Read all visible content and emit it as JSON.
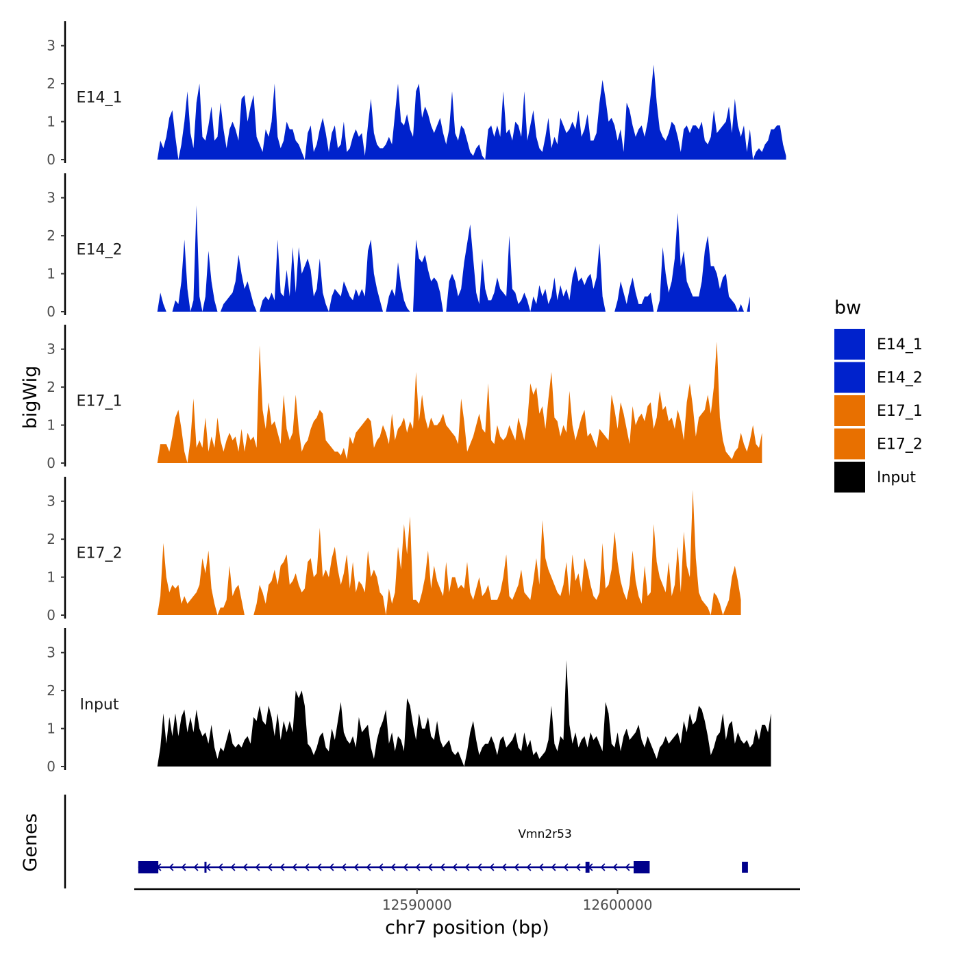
{
  "chart_data": {
    "type": "area",
    "ylabel": "bigWig",
    "xlabel": "chr7 position (bp)",
    "genes_label": "Genes",
    "xlim": [
      12575900,
      12609100
    ],
    "ylim": [
      0,
      3.5
    ],
    "y_ticks": [
      "0",
      "1",
      "2",
      "3"
    ],
    "x_ticks": [
      {
        "value": 12590000,
        "label": "12590000"
      },
      {
        "value": 12600000,
        "label": "12600000"
      }
    ],
    "data_start": 12577200,
    "data_step": 150,
    "legend": {
      "title": "bw",
      "entries": [
        {
          "label": "E14_1",
          "color": "#0022cc"
        },
        {
          "label": "E14_2",
          "color": "#0022cc"
        },
        {
          "label": "E17_1",
          "color": "#e87000"
        },
        {
          "label": "E17_2",
          "color": "#e87000"
        },
        {
          "label": "Input",
          "color": "#000000"
        }
      ]
    },
    "series": [
      {
        "name": "E14_1",
        "color": "#0022cc",
        "values": [
          0.5,
          0.3,
          0.6,
          1.1,
          1.3,
          0.6,
          0,
          0.4,
          1.0,
          1.8,
          0.7,
          0.3,
          1.5,
          2.0,
          0.6,
          0.5,
          0.9,
          1.4,
          0.5,
          0.6,
          1.5,
          0.8,
          0.3,
          0.8,
          1.0,
          0.8,
          0.5,
          1.6,
          1.7,
          1.0,
          1.4,
          1.7,
          0.6,
          0.4,
          0.2,
          0.8,
          0.6,
          1.0,
          2.0,
          0.6,
          0.3,
          0.5,
          1.0,
          0.8,
          0.8,
          0.5,
          0.4,
          0.2,
          0,
          0.7,
          0.9,
          0.2,
          0.4,
          0.8,
          1.1,
          0.7,
          0.2,
          0.7,
          0.9,
          0.3,
          0.4,
          1.0,
          0.2,
          0.3,
          0.6,
          0.8,
          0.6,
          0.7,
          0.1,
          0.9,
          1.6,
          0.7,
          0.4,
          0.3,
          0.3,
          0.4,
          0.6,
          0.4,
          1.2,
          2.0,
          1.0,
          0.9,
          1.2,
          0.8,
          0.6,
          1.8,
          2.0,
          1.1,
          1.4,
          1.2,
          0.9,
          0.7,
          0.9,
          1.1,
          0.7,
          0.4,
          0.8,
          1.8,
          0.7,
          0.5,
          0.9,
          0.8,
          0.5,
          0.2,
          0.1,
          0.3,
          0.4,
          0.1,
          0,
          0.8,
          0.9,
          0.6,
          0.9,
          0.6,
          1.8,
          0.7,
          0.8,
          0.5,
          1.0,
          0.9,
          0.6,
          1.8,
          0.5,
          0.9,
          1.3,
          0.6,
          0.3,
          0.2,
          0.6,
          1.1,
          0.3,
          0.6,
          0.4,
          1.1,
          0.9,
          0.7,
          0.8,
          1.0,
          0.8,
          1.3,
          0.6,
          0.8,
          1.2,
          0.5,
          0.5,
          0.7,
          1.5,
          2.1,
          1.6,
          1.0,
          1.1,
          0.9,
          0.5,
          0.8,
          0.2,
          1.5,
          1.3,
          0.9,
          0.6,
          0.8,
          0.9,
          0.6,
          1.0,
          1.7,
          2.5,
          1.5,
          0.8,
          0.6,
          0.5,
          0.7,
          1.0,
          0.9,
          0.6,
          0.2,
          0.8,
          0.9,
          0.7,
          0.9,
          0.9,
          0.8,
          1.0,
          0.5,
          0.4,
          0.6,
          1.3,
          0.7,
          0.8,
          0.9,
          1.0,
          1.4,
          0.7,
          1.6,
          0.9,
          0.6,
          0.9,
          0.2,
          0.8,
          0,
          0.2,
          0.3,
          0.2,
          0.4,
          0.5,
          0.8,
          0.8,
          0.9,
          0.9,
          0.4,
          0.1
        ]
      },
      {
        "name": "E14_2",
        "color": "#0022cc",
        "values": [
          0.5,
          0.2,
          0,
          0,
          0,
          0.3,
          0.2,
          0.8,
          1.9,
          0.6,
          0,
          0.3,
          2.8,
          0.4,
          0,
          0.4,
          1.6,
          0.8,
          0.3,
          0,
          0,
          0.2,
          0.3,
          0.4,
          0.5,
          0.8,
          1.5,
          1.0,
          0.6,
          0.8,
          0.5,
          0.2,
          0,
          0,
          0.3,
          0.4,
          0.3,
          0.5,
          0.3,
          1.9,
          0.5,
          0.4,
          1.1,
          0.4,
          1.7,
          0.5,
          1.7,
          1.0,
          1.2,
          1.4,
          1.1,
          0.4,
          0.6,
          1.4,
          0.5,
          0.2,
          0,
          0.4,
          0.6,
          0.5,
          0.4,
          0.8,
          0.6,
          0.4,
          0.3,
          0.6,
          0.4,
          0.6,
          0.4,
          1.6,
          1.9,
          1.0,
          0.6,
          0.3,
          0,
          0,
          0.4,
          0.6,
          0.4,
          1.3,
          0.7,
          0.3,
          0.1,
          0,
          0,
          1.9,
          1.4,
          1.3,
          1.5,
          1.1,
          0.8,
          0.9,
          0.8,
          0.5,
          0,
          0,
          0.8,
          1.0,
          0.8,
          0.4,
          0.6,
          1.3,
          1.8,
          2.3,
          1.4,
          0.5,
          0.2,
          1.4,
          0.6,
          0.3,
          0.3,
          0.5,
          0.9,
          0.6,
          0.5,
          0.4,
          2.0,
          0.6,
          0.5,
          0.2,
          0.3,
          0.5,
          0.3,
          0,
          0.4,
          0.2,
          0.7,
          0.4,
          0.6,
          0.2,
          0.4,
          0.9,
          0.3,
          0.7,
          0.4,
          0.6,
          0.3,
          0.9,
          1.2,
          0.8,
          0.9,
          0.7,
          0.9,
          1.0,
          0.6,
          0.9,
          1.8,
          0.4,
          0,
          0,
          0,
          0,
          0.3,
          0.8,
          0.5,
          0.2,
          0.6,
          0.9,
          0.5,
          0.2,
          0.2,
          0.4,
          0.4,
          0.5,
          0,
          0,
          0.3,
          1.7,
          1.0,
          0.5,
          0.8,
          1.4,
          2.6,
          1.2,
          1.6,
          0.8,
          0.6,
          0.4,
          0.4,
          0.4,
          0.8,
          1.6,
          2.0,
          1.2,
          1.2,
          1.0,
          0.6,
          0.9,
          1.0,
          0.4,
          0.3,
          0.2,
          0,
          0.2,
          0,
          0,
          0.4
        ]
      },
      {
        "name": "E17_1",
        "color": "#e87000",
        "values": [
          0.5,
          0.5,
          0.5,
          0.3,
          0.7,
          1.2,
          1.4,
          0.9,
          0.3,
          0,
          0.6,
          1.7,
          0.4,
          0.6,
          0.4,
          1.2,
          0.3,
          0.7,
          0.4,
          1.2,
          0.6,
          0.3,
          0.6,
          0.8,
          0.6,
          0.7,
          0.3,
          0.9,
          0.3,
          0.8,
          0.6,
          0.7,
          0.4,
          3.1,
          1.4,
          0.9,
          1.6,
          1.0,
          1.1,
          0.8,
          0.5,
          1.8,
          0.9,
          0.6,
          0.8,
          1.8,
          0.9,
          0.3,
          0.5,
          0.6,
          0.9,
          1.1,
          1.2,
          1.4,
          1.3,
          0.6,
          0.5,
          0.4,
          0.3,
          0.3,
          0.2,
          0.4,
          0.1,
          0.7,
          0.5,
          0.8,
          0.9,
          1.0,
          1.1,
          1.2,
          1.1,
          0.4,
          0.6,
          0.7,
          1.0,
          0.8,
          0.5,
          1.3,
          0.6,
          0.9,
          1.0,
          1.2,
          0.8,
          1.1,
          0.9,
          2.4,
          1.1,
          1.8,
          1.2,
          0.9,
          1.2,
          1.0,
          1.0,
          1.1,
          1.3,
          1.0,
          0.9,
          0.8,
          0.7,
          0.5,
          1.7,
          1.1,
          0.3,
          0.5,
          0.7,
          1.0,
          1.3,
          0.9,
          0.8,
          2.1,
          0.6,
          0.5,
          1.0,
          0.7,
          0.6,
          0.7,
          1.0,
          0.8,
          0.6,
          1.2,
          0.9,
          0.6,
          1.1,
          2.1,
          1.8,
          2.0,
          1.3,
          1.5,
          0.9,
          1.7,
          2.4,
          1.2,
          1.1,
          0.7,
          1.0,
          0.8,
          1.9,
          1.0,
          0.6,
          0.9,
          1.2,
          1.4,
          0.7,
          0.8,
          0.6,
          0.4,
          0.9,
          0.8,
          0.7,
          0.6,
          1.8,
          1.4,
          0.9,
          1.6,
          1.3,
          0.9,
          0.5,
          1.5,
          1.0,
          1.2,
          1.3,
          1.1,
          1.5,
          1.6,
          0.9,
          1.2,
          1.9,
          1.4,
          1.5,
          1.1,
          1.2,
          0.9,
          1.4,
          1.1,
          0.6,
          1.6,
          2.1,
          1.5,
          0.7,
          1.2,
          1.3,
          1.4,
          1.8,
          1.3,
          2.0,
          3.2,
          1.2,
          0.6,
          0.3,
          0.2,
          0.1,
          0.3,
          0.4,
          0.8,
          0.5,
          0.3,
          0.6,
          1.0,
          0.5,
          0.4,
          0.8
        ]
      },
      {
        "name": "E17_2",
        "color": "#e87000",
        "values": [
          0.5,
          1.9,
          1.0,
          0.6,
          0.8,
          0.7,
          0.8,
          0.3,
          0.5,
          0.3,
          0.4,
          0.5,
          0.6,
          0.8,
          1.5,
          1.1,
          1.7,
          0.7,
          0.3,
          0,
          0.2,
          0.2,
          0.4,
          1.3,
          0.5,
          0.7,
          0.8,
          0.4,
          0,
          0,
          0,
          0,
          0.3,
          0.8,
          0.6,
          0.3,
          0.8,
          0.9,
          1.2,
          0.8,
          1.3,
          1.4,
          1.6,
          0.8,
          0.9,
          1.1,
          0.8,
          0.6,
          0.7,
          1.4,
          1.5,
          1.0,
          1.1,
          2.3,
          1.0,
          1.2,
          1.0,
          1.5,
          1.8,
          1.2,
          0.8,
          1.1,
          1.6,
          0.7,
          1.4,
          0.6,
          0.9,
          0.8,
          0.6,
          1.7,
          1.0,
          1.2,
          1.0,
          0.6,
          0.5,
          0,
          0.7,
          0.3,
          0.6,
          1.8,
          1.2,
          2.4,
          1.6,
          2.6,
          0.4,
          0.4,
          0.3,
          0.6,
          1.0,
          1.7,
          0.7,
          1.3,
          0.9,
          0.7,
          0.5,
          1.4,
          0.6,
          1.0,
          1.0,
          0.7,
          0.8,
          0.7,
          1.4,
          0.6,
          0.4,
          0.7,
          1.0,
          0.5,
          0.6,
          0.8,
          0.4,
          0.4,
          0.4,
          0.6,
          1.0,
          1.6,
          0.5,
          0.4,
          0.6,
          0.8,
          1.2,
          0.6,
          0.5,
          0.4,
          0.9,
          1.5,
          0.8,
          2.5,
          1.5,
          1.2,
          1.0,
          0.8,
          0.6,
          0.5,
          0.8,
          1.4,
          0.5,
          1.6,
          0.9,
          1.1,
          0.6,
          1.5,
          1.2,
          0.8,
          0.5,
          0.4,
          0.6,
          1.9,
          0.7,
          0.8,
          1.2,
          2.2,
          1.4,
          0.9,
          0.6,
          0.4,
          0.8,
          1.7,
          0.9,
          0.5,
          0.3,
          1.3,
          0.5,
          0.6,
          2.4,
          1.4,
          1.0,
          0.8,
          0.6,
          1.4,
          0.5,
          0.8,
          1.8,
          0.6,
          2.2,
          1.3,
          1.0,
          3.3,
          1.5,
          0.6,
          0.4,
          0.3,
          0.2,
          0,
          0.6,
          0.5,
          0.3,
          0,
          0.2,
          0.4,
          1.0,
          1.3,
          0.9,
          0.4
        ]
      },
      {
        "name": "Input",
        "color": "#000000",
        "values": [
          0.5,
          1.4,
          0.6,
          1.3,
          0.8,
          1.4,
          0.8,
          1.3,
          1.5,
          0.9,
          1.3,
          0.9,
          1.5,
          1.0,
          0.8,
          0.9,
          0.6,
          1.1,
          0.5,
          0.2,
          0.5,
          0.4,
          0.7,
          1.0,
          0.6,
          0.5,
          0.6,
          0.5,
          0.7,
          0.8,
          0.6,
          1.3,
          1.2,
          1.6,
          1.2,
          1.1,
          1.6,
          1.3,
          0.8,
          1.4,
          0.7,
          1.2,
          0.9,
          1.2,
          0.9,
          2.0,
          1.8,
          2.0,
          1.6,
          0.6,
          0.5,
          0.3,
          0.5,
          0.8,
          0.9,
          0.5,
          0.4,
          1.0,
          0.7,
          1.2,
          1.7,
          0.9,
          0.7,
          0.6,
          0.8,
          0.5,
          1.3,
          0.9,
          1.0,
          1.1,
          0.5,
          0.2,
          0.7,
          1.0,
          1.2,
          1.5,
          0.6,
          0.9,
          0.4,
          0.8,
          0.7,
          0.4,
          1.8,
          1.6,
          1.1,
          0.7,
          1.4,
          1.0,
          1.0,
          1.3,
          0.8,
          0.7,
          1.2,
          0.7,
          0.5,
          0.6,
          0.7,
          0.4,
          0.3,
          0.4,
          0.2,
          0,
          0.4,
          0.9,
          1.2,
          0.7,
          0.3,
          0.5,
          0.6,
          0.6,
          0.8,
          0.6,
          0.3,
          0.7,
          0.8,
          0.5,
          0.6,
          0.7,
          0.9,
          0.5,
          0.4,
          0.9,
          0.5,
          0.7,
          0.3,
          0.4,
          0.2,
          0.3,
          0.4,
          0.7,
          1.6,
          0.6,
          0.4,
          0.8,
          0.7,
          2.8,
          1.1,
          0.6,
          0.9,
          0.5,
          0.7,
          0.8,
          0.5,
          0.9,
          0.7,
          0.8,
          0.6,
          0.4,
          1.7,
          1.4,
          0.6,
          0.5,
          0.9,
          0.4,
          0.8,
          1.0,
          0.7,
          0.8,
          0.9,
          1.1,
          0.7,
          0.5,
          0.8,
          0.6,
          0.4,
          0.2,
          0.5,
          0.6,
          0.8,
          0.6,
          0.7,
          0.8,
          0.9,
          0.6,
          1.2,
          0.9,
          1.4,
          1.1,
          1.2,
          1.6,
          1.5,
          1.2,
          0.8,
          0.3,
          0.5,
          0.8,
          0.9,
          1.4,
          0.7,
          1.1,
          1.2,
          0.6,
          0.9,
          0.7,
          0.6,
          0.7,
          0.5,
          0.6,
          1.0,
          0.7,
          1.1,
          1.1,
          0.9,
          1.4
        ]
      }
    ],
    "genes": [
      {
        "name": "Vmn2r53",
        "strand": "-",
        "start": 12576100,
        "end": 12600950,
        "thick_exons": [
          [
            12576100,
            12577100
          ],
          [
            12600800,
            12601600
          ]
        ],
        "thin_exons": [
          [
            12579400,
            12579500
          ],
          [
            12598400,
            12598600
          ],
          [
            12606200,
            12606500
          ]
        ]
      }
    ]
  }
}
